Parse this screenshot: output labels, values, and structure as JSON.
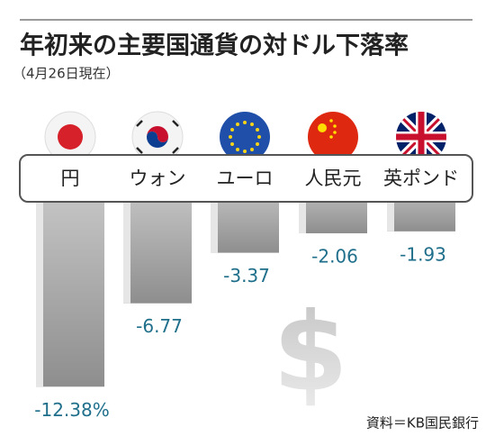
{
  "chart_data": {
    "type": "bar",
    "title": "年初来の主要国通貨の対ドル下落率",
    "subtitle": "（4月26日現在）",
    "source": "資料＝KB国民銀行",
    "categories": [
      "円",
      "ウォン",
      "ユーロ",
      "人民元",
      "英ポンド"
    ],
    "values": [
      -12.38,
      -6.77,
      -3.37,
      -2.06,
      -1.93
    ],
    "value_labels": [
      "-12.38%",
      "-6.77",
      "-3.37",
      "-2.06",
      "-1.93"
    ],
    "color": "#a8a8a8",
    "label_color": "#1f6f8b"
  }
}
